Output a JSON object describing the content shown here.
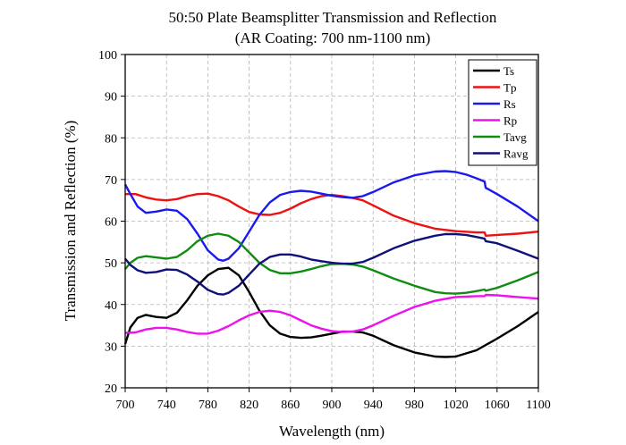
{
  "chart_data": {
    "type": "line",
    "title": "50:50 Plate Beamsplitter  Transmission and Reflection",
    "subtitle": "(AR Coating: 700 nm-1100 nm)",
    "xlabel": "Wavelength (nm)",
    "ylabel": "Transmission and Reflection (%)",
    "xlim": [
      700,
      1100
    ],
    "ylim": [
      20,
      100
    ],
    "xticks": [
      700,
      740,
      780,
      820,
      860,
      900,
      940,
      980,
      1020,
      1060,
      1100
    ],
    "yticks": [
      20,
      30,
      40,
      50,
      60,
      70,
      80,
      90,
      100
    ],
    "grid": true,
    "legend_position": "top-right",
    "series": [
      {
        "name": "Ts",
        "color": "#000000",
        "points": [
          [
            700,
            30.5
          ],
          [
            705,
            34.5
          ],
          [
            712,
            36.8
          ],
          [
            720,
            37.5
          ],
          [
            730,
            37.0
          ],
          [
            740,
            36.8
          ],
          [
            750,
            38.0
          ],
          [
            760,
            41.0
          ],
          [
            770,
            44.5
          ],
          [
            780,
            47.0
          ],
          [
            790,
            48.5
          ],
          [
            800,
            48.8
          ],
          [
            810,
            47.0
          ],
          [
            820,
            43.0
          ],
          [
            830,
            38.5
          ],
          [
            840,
            35.0
          ],
          [
            850,
            33.0
          ],
          [
            860,
            32.2
          ],
          [
            870,
            32.0
          ],
          [
            880,
            32.1
          ],
          [
            890,
            32.5
          ],
          [
            900,
            33.0
          ],
          [
            910,
            33.5
          ],
          [
            920,
            33.5
          ],
          [
            930,
            33.3
          ],
          [
            940,
            32.5
          ],
          [
            960,
            30.2
          ],
          [
            980,
            28.5
          ],
          [
            1000,
            27.5
          ],
          [
            1010,
            27.4
          ],
          [
            1020,
            27.5
          ],
          [
            1040,
            29.0
          ],
          [
            1060,
            31.8
          ],
          [
            1080,
            34.8
          ],
          [
            1100,
            38.2
          ]
        ]
      },
      {
        "name": "Tp",
        "color": "#ee1111",
        "points": [
          [
            700,
            66.5
          ],
          [
            710,
            66.5
          ],
          [
            720,
            65.7
          ],
          [
            730,
            65.2
          ],
          [
            740,
            65.0
          ],
          [
            750,
            65.3
          ],
          [
            760,
            66.0
          ],
          [
            770,
            66.5
          ],
          [
            780,
            66.6
          ],
          [
            790,
            66.0
          ],
          [
            800,
            65.0
          ],
          [
            810,
            63.5
          ],
          [
            820,
            62.2
          ],
          [
            830,
            61.6
          ],
          [
            840,
            61.5
          ],
          [
            850,
            62.0
          ],
          [
            860,
            63.0
          ],
          [
            870,
            64.3
          ],
          [
            880,
            65.3
          ],
          [
            890,
            66.0
          ],
          [
            900,
            66.3
          ],
          [
            910,
            66.0
          ],
          [
            920,
            65.6
          ],
          [
            930,
            65.0
          ],
          [
            940,
            63.8
          ],
          [
            960,
            61.3
          ],
          [
            980,
            59.5
          ],
          [
            1000,
            58.2
          ],
          [
            1020,
            57.6
          ],
          [
            1040,
            57.3
          ],
          [
            1048,
            57.3
          ],
          [
            1049,
            56.5
          ],
          [
            1060,
            56.7
          ],
          [
            1080,
            57.0
          ],
          [
            1100,
            57.5
          ]
        ]
      },
      {
        "name": "Rs",
        "color": "#1a1aee",
        "points": [
          [
            700,
            68.8
          ],
          [
            705,
            66.5
          ],
          [
            712,
            63.5
          ],
          [
            720,
            62.0
          ],
          [
            730,
            62.3
          ],
          [
            740,
            62.8
          ],
          [
            750,
            62.5
          ],
          [
            760,
            60.5
          ],
          [
            770,
            57.0
          ],
          [
            780,
            53.0
          ],
          [
            790,
            50.8
          ],
          [
            795,
            50.5
          ],
          [
            800,
            51.0
          ],
          [
            810,
            53.5
          ],
          [
            820,
            57.5
          ],
          [
            830,
            61.5
          ],
          [
            840,
            64.5
          ],
          [
            850,
            66.3
          ],
          [
            860,
            67.0
          ],
          [
            870,
            67.3
          ],
          [
            880,
            67.1
          ],
          [
            890,
            66.6
          ],
          [
            900,
            66.1
          ],
          [
            910,
            65.8
          ],
          [
            920,
            65.6
          ],
          [
            930,
            66.0
          ],
          [
            940,
            67.0
          ],
          [
            960,
            69.3
          ],
          [
            980,
            71.0
          ],
          [
            1000,
            71.9
          ],
          [
            1010,
            72.0
          ],
          [
            1020,
            71.8
          ],
          [
            1030,
            71.2
          ],
          [
            1040,
            70.3
          ],
          [
            1048,
            69.5
          ],
          [
            1049,
            68.0
          ],
          [
            1052,
            67.6
          ],
          [
            1060,
            66.5
          ],
          [
            1080,
            63.5
          ],
          [
            1100,
            60.0
          ]
        ]
      },
      {
        "name": "Rp",
        "color": "#ee11ee",
        "points": [
          [
            700,
            33.2
          ],
          [
            710,
            33.3
          ],
          [
            720,
            34.0
          ],
          [
            730,
            34.4
          ],
          [
            740,
            34.4
          ],
          [
            750,
            34.0
          ],
          [
            760,
            33.4
          ],
          [
            770,
            33.0
          ],
          [
            780,
            33.0
          ],
          [
            790,
            33.7
          ],
          [
            800,
            34.8
          ],
          [
            810,
            36.2
          ],
          [
            820,
            37.4
          ],
          [
            830,
            38.2
          ],
          [
            840,
            38.5
          ],
          [
            850,
            38.2
          ],
          [
            860,
            37.4
          ],
          [
            870,
            36.2
          ],
          [
            880,
            35.0
          ],
          [
            890,
            34.2
          ],
          [
            900,
            33.6
          ],
          [
            910,
            33.4
          ],
          [
            920,
            33.5
          ],
          [
            930,
            34.0
          ],
          [
            940,
            35.0
          ],
          [
            960,
            37.3
          ],
          [
            980,
            39.4
          ],
          [
            1000,
            40.9
          ],
          [
            1020,
            41.8
          ],
          [
            1040,
            42.0
          ],
          [
            1048,
            42.0
          ],
          [
            1049,
            42.3
          ],
          [
            1060,
            42.2
          ],
          [
            1080,
            41.8
          ],
          [
            1100,
            41.4
          ]
        ]
      },
      {
        "name": "Tavg",
        "color": "#108c10",
        "points": [
          [
            700,
            48.5
          ],
          [
            705,
            50.0
          ],
          [
            712,
            51.2
          ],
          [
            720,
            51.6
          ],
          [
            730,
            51.3
          ],
          [
            740,
            51.0
          ],
          [
            750,
            51.4
          ],
          [
            760,
            53.0
          ],
          [
            770,
            55.2
          ],
          [
            780,
            56.5
          ],
          [
            790,
            57.0
          ],
          [
            800,
            56.5
          ],
          [
            810,
            55.0
          ],
          [
            820,
            52.5
          ],
          [
            830,
            50.0
          ],
          [
            840,
            48.3
          ],
          [
            850,
            47.5
          ],
          [
            860,
            47.5
          ],
          [
            870,
            47.9
          ],
          [
            880,
            48.5
          ],
          [
            890,
            49.2
          ],
          [
            900,
            49.7
          ],
          [
            910,
            49.8
          ],
          [
            920,
            49.6
          ],
          [
            930,
            49.1
          ],
          [
            940,
            48.2
          ],
          [
            960,
            46.2
          ],
          [
            980,
            44.5
          ],
          [
            1000,
            43.0
          ],
          [
            1010,
            42.7
          ],
          [
            1020,
            42.6
          ],
          [
            1030,
            42.8
          ],
          [
            1040,
            43.2
          ],
          [
            1048,
            43.6
          ],
          [
            1049,
            43.3
          ],
          [
            1060,
            44.0
          ],
          [
            1080,
            45.8
          ],
          [
            1100,
            47.8
          ]
        ]
      },
      {
        "name": "Ravg",
        "color": "#10107a",
        "points": [
          [
            700,
            51.0
          ],
          [
            705,
            49.5
          ],
          [
            712,
            48.2
          ],
          [
            720,
            47.6
          ],
          [
            730,
            47.8
          ],
          [
            740,
            48.4
          ],
          [
            750,
            48.3
          ],
          [
            760,
            47.2
          ],
          [
            770,
            45.5
          ],
          [
            780,
            43.5
          ],
          [
            790,
            42.5
          ],
          [
            795,
            42.4
          ],
          [
            800,
            42.8
          ],
          [
            810,
            44.5
          ],
          [
            820,
            47.2
          ],
          [
            830,
            49.8
          ],
          [
            840,
            51.4
          ],
          [
            850,
            52.0
          ],
          [
            860,
            52.0
          ],
          [
            870,
            51.5
          ],
          [
            880,
            50.8
          ],
          [
            890,
            50.4
          ],
          [
            900,
            50.0
          ],
          [
            910,
            49.8
          ],
          [
            920,
            49.8
          ],
          [
            930,
            50.2
          ],
          [
            940,
            51.2
          ],
          [
            960,
            53.5
          ],
          [
            980,
            55.3
          ],
          [
            1000,
            56.5
          ],
          [
            1010,
            56.9
          ],
          [
            1020,
            56.9
          ],
          [
            1030,
            56.7
          ],
          [
            1040,
            56.2
          ],
          [
            1048,
            55.8
          ],
          [
            1049,
            55.2
          ],
          [
            1060,
            54.7
          ],
          [
            1080,
            52.9
          ],
          [
            1100,
            51.0
          ]
        ]
      }
    ]
  }
}
